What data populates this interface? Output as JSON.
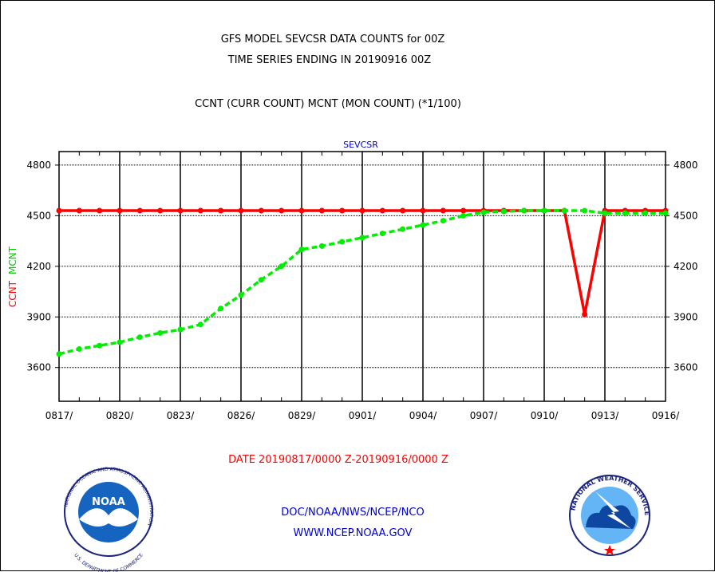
{
  "chart_data": {
    "type": "line",
    "title": "GFS MODEL SEVCSR DATA COUNTS for 00Z",
    "subtitle": "TIME SERIES ENDING IN 20190916 00Z",
    "legend_caption": "CCNT (CURR COUNT) MCNT (MON COUNT) (*1/100)",
    "panel_label": "SEVCSR",
    "ylabel": "CCNT  MCNT",
    "ylabel_parts": [
      "CCNT",
      "MCNT"
    ],
    "date_range": "DATE 20190817/0000 Z-20190916/0000 Z",
    "ylim": [
      3400,
      4880
    ],
    "yticks": [
      3600,
      3900,
      4200,
      4500,
      4800
    ],
    "xlim": [
      "2019-08-17",
      "2019-09-16"
    ],
    "xtick_labels": [
      "0817/",
      "0820/",
      "0823/",
      "0826/",
      "0829/",
      "0901/",
      "0904/",
      "0907/",
      "0910/",
      "0913/",
      "0916/"
    ],
    "x": [
      "2019-08-17",
      "2019-08-18",
      "2019-08-19",
      "2019-08-20",
      "2019-08-21",
      "2019-08-22",
      "2019-08-23",
      "2019-08-24",
      "2019-08-25",
      "2019-08-26",
      "2019-08-27",
      "2019-08-28",
      "2019-08-29",
      "2019-08-30",
      "2019-08-31",
      "2019-09-01",
      "2019-09-02",
      "2019-09-03",
      "2019-09-04",
      "2019-09-05",
      "2019-09-06",
      "2019-09-07",
      "2019-09-08",
      "2019-09-09",
      "2019-09-10",
      "2019-09-11",
      "2019-09-12",
      "2019-09-13",
      "2019-09-14",
      "2019-09-15",
      "2019-09-16"
    ],
    "series": [
      {
        "name": "CCNT",
        "color": "#ff0000",
        "style": "solid",
        "values": [
          4530,
          4530,
          4530,
          4530,
          4530,
          4530,
          4530,
          4530,
          4530,
          4530,
          4530,
          4530,
          4530,
          4530,
          4530,
          4530,
          4530,
          4530,
          4530,
          4530,
          4530,
          4530,
          4530,
          4530,
          4530,
          4530,
          3915,
          4530,
          4530,
          4530,
          4530
        ]
      },
      {
        "name": "MCNT",
        "color": "#00ee00",
        "style": "dashed",
        "values": [
          3680,
          3710,
          3730,
          3750,
          3780,
          3805,
          3825,
          3855,
          3950,
          4030,
          4120,
          4200,
          4300,
          4320,
          4345,
          4370,
          4395,
          4420,
          4445,
          4470,
          4500,
          4520,
          4525,
          4530,
          4530,
          4530,
          4530,
          4515,
          4515,
          4515,
          4515
        ]
      }
    ],
    "grid": true,
    "legend": "none"
  },
  "footer": {
    "agency": "DOC/NOAA/NWS/NCEP/NCO",
    "website": "WWW.NCEP.NOAA.GOV"
  },
  "logos": {
    "left": {
      "icon": "noaa-logo-icon",
      "center_text": "NOAA",
      "ring_text": "NATIONAL OCEANIC AND ATMOSPHERIC ADMINISTRATION",
      "bottom_text": "U.S. DEPARTMENT OF COMMERCE"
    },
    "right": {
      "icon": "nws-logo-icon",
      "ring_text": "NATIONAL WEATHER SERVICE"
    }
  },
  "colors": {
    "ccnt": "#ff0000",
    "mcnt": "#00ee00",
    "date_text": "#ff0000",
    "footer_text": "#0000cc",
    "panel_label": "#0000cc"
  }
}
